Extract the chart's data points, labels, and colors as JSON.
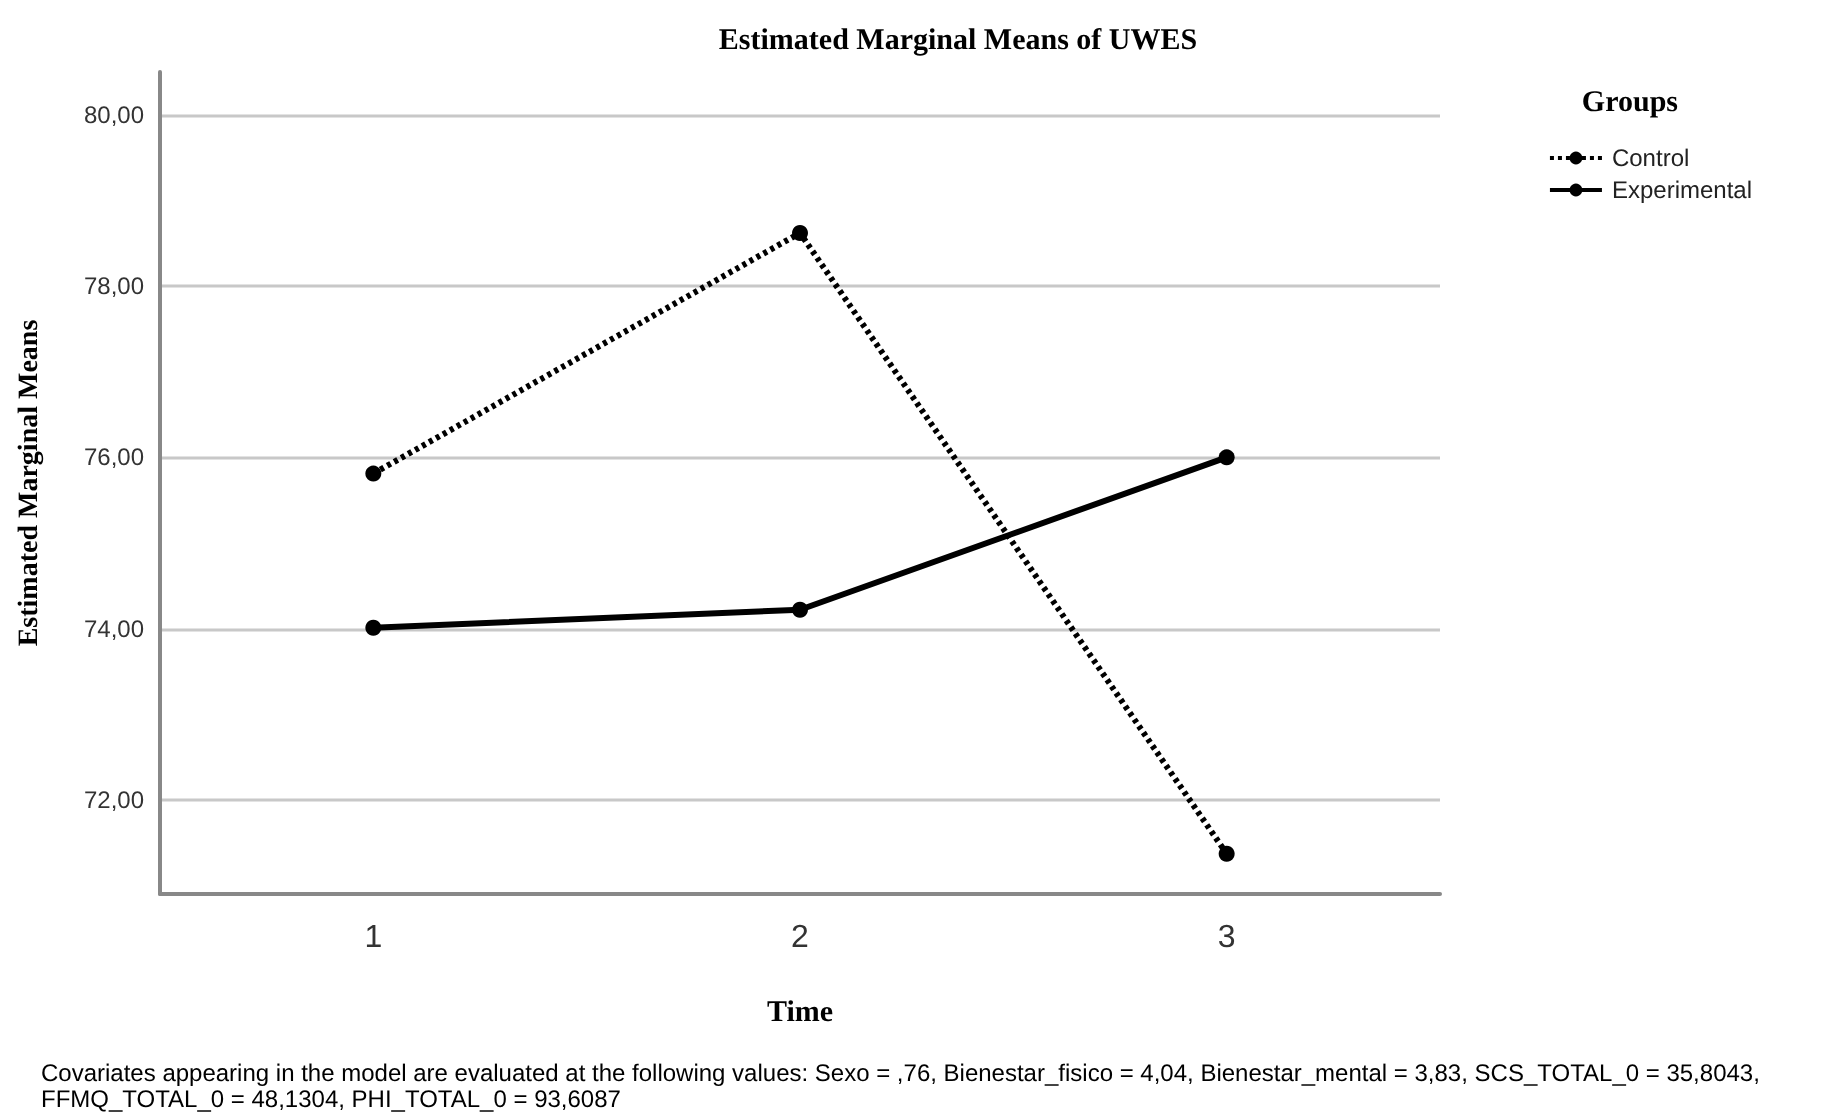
{
  "chart_data": {
    "type": "line",
    "title": "Estimated Marginal Means of UWES",
    "xlabel": "Time",
    "ylabel": "Estimated Marginal Means",
    "legend_title": "Groups",
    "categories": [
      "1",
      "2",
      "3"
    ],
    "series": [
      {
        "name": "Control",
        "color": "#000000",
        "line_style": "dotted",
        "values": [
          75.81,
          78.62,
          71.37
        ]
      },
      {
        "name": "Experimental",
        "color": "#000000",
        "line_style": "solid",
        "values": [
          74.01,
          74.22,
          76.0
        ]
      }
    ],
    "ylim": [
      70.9,
      80.5
    ],
    "yticks": [
      {
        "value": 72,
        "label": "72,00"
      },
      {
        "value": 74,
        "label": "74,00"
      },
      {
        "value": 76,
        "label": "76,00"
      },
      {
        "value": 78,
        "label": "78,00"
      },
      {
        "value": 80,
        "label": "80,00"
      }
    ],
    "grid": "y",
    "legend": "top right",
    "marker": "circle",
    "annotations": [
      "Covariates appearing in the model are evaluated at the following values: Sexo = ,76, Bienestar_fisico = 4,04, Bienestar_mental = 3,83, SCS_TOTAL_0 = 35,8043, FFMQ_TOTAL_0 = 48,1304, PHI_TOTAL_0 = 93,6087"
    ]
  }
}
